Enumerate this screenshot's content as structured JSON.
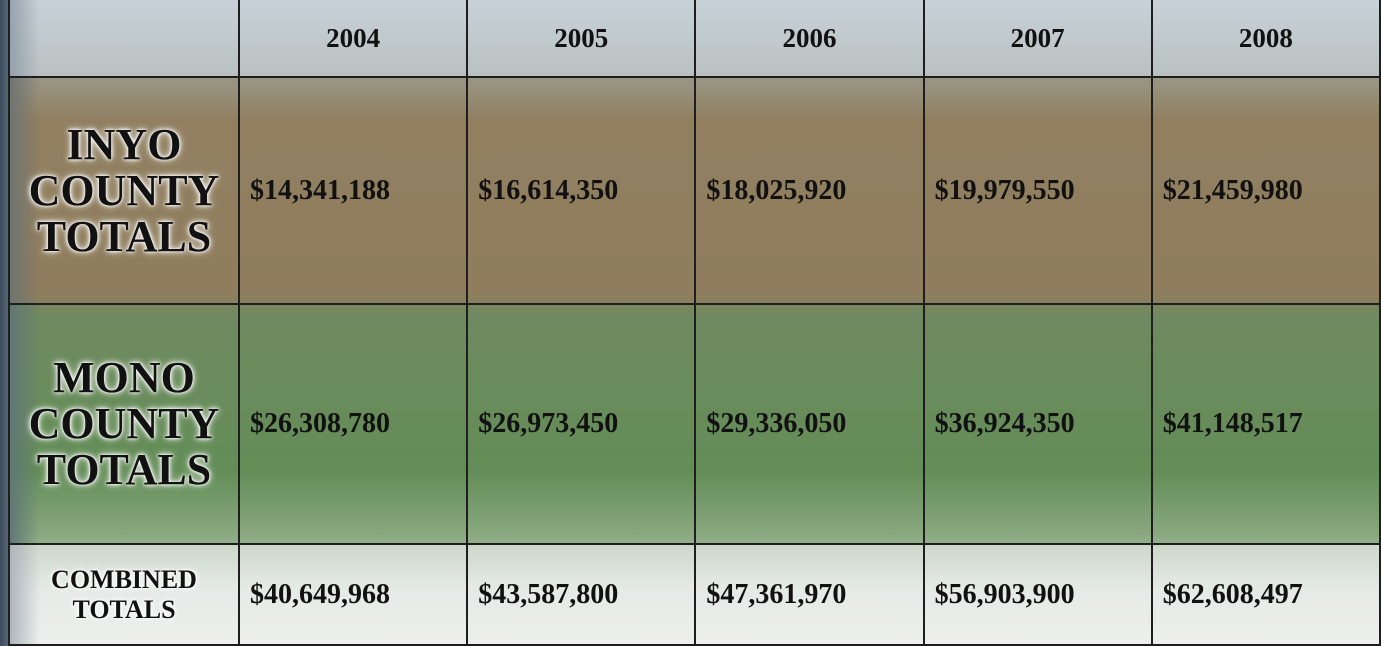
{
  "table": {
    "columns": [
      "2004",
      "2005",
      "2006",
      "2007",
      "2008"
    ],
    "rows": [
      {
        "label": "INYO\nCOUNTY\nTOTALS",
        "values": [
          "$14,341,188",
          "$16,614,350",
          "$18,025,920",
          "$19,979,550",
          "$21,459,980"
        ]
      },
      {
        "label": "MONO\nCOUNTY\nTOTALS",
        "values": [
          "$26,308,780",
          "$26,973,450",
          "$29,336,050",
          "$36,924,350",
          "$41,148,517"
        ]
      },
      {
        "label": "COMBINED\nTOTALS",
        "values": [
          "$40,649,968",
          "$43,587,800",
          "$47,361,970",
          "$56,903,900",
          "$62,608,497"
        ]
      }
    ]
  }
}
